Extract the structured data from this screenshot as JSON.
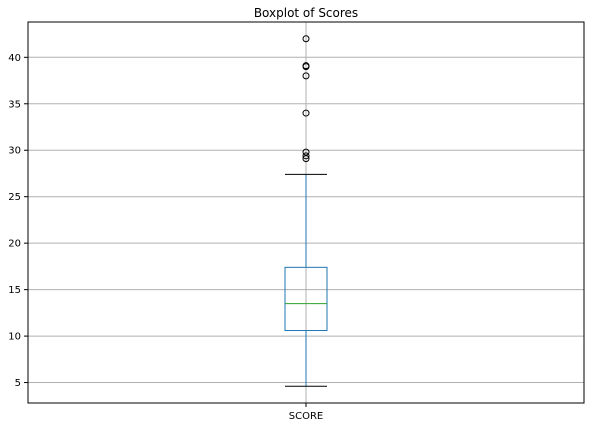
{
  "chart_data": {
    "type": "box",
    "title": "Boxplot of Scores",
    "categories": [
      "SCORE"
    ],
    "boxes": [
      {
        "category": "SCORE",
        "whisker_low": 4.6,
        "q1": 10.6,
        "median": 13.5,
        "q3": 17.4,
        "whisker_high": 27.4,
        "outliers": [
          29.1,
          29.4,
          29.8,
          34.0,
          38.0,
          39.0,
          39.1,
          42.0
        ]
      }
    ],
    "ylim": [
      2.8,
      43.8
    ],
    "yticks": [
      5,
      10,
      15,
      20,
      25,
      30,
      35,
      40
    ],
    "grid": true,
    "colors": {
      "box": "#1f77b4",
      "median": "#2ca02c",
      "whisker": "#1f77b4",
      "cap": "#000000",
      "outlier": "#000000",
      "grid": "#b0b0b0",
      "axes": "#000000"
    }
  }
}
